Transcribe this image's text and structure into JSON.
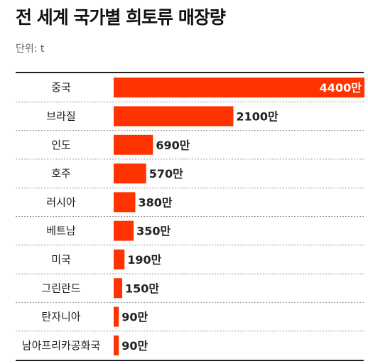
{
  "title": "전 세계 국가별 희토류 매장량",
  "unit": "단위: t",
  "colors": {
    "bar": "#ff3300",
    "separator": "#999999",
    "rule": "#222222"
  },
  "chart_data": {
    "type": "bar",
    "orientation": "horizontal",
    "title": "전 세계 국가별 희토류 매장량",
    "unit": "단위: t",
    "value_suffix": "만",
    "categories": [
      "중국",
      "브라질",
      "인도",
      "호주",
      "러시아",
      "베트남",
      "미국",
      "그린란드",
      "탄자니아",
      "남아프리카공화국"
    ],
    "values": [
      4400,
      2100,
      690,
      570,
      380,
      350,
      190,
      150,
      90,
      90
    ],
    "labels": [
      "4400만",
      "2100만",
      "690만",
      "570만",
      "380만",
      "350만",
      "190만",
      "150만",
      "90만",
      "90만"
    ],
    "xlim": [
      0,
      4400
    ],
    "grid": false,
    "legend": "none"
  }
}
